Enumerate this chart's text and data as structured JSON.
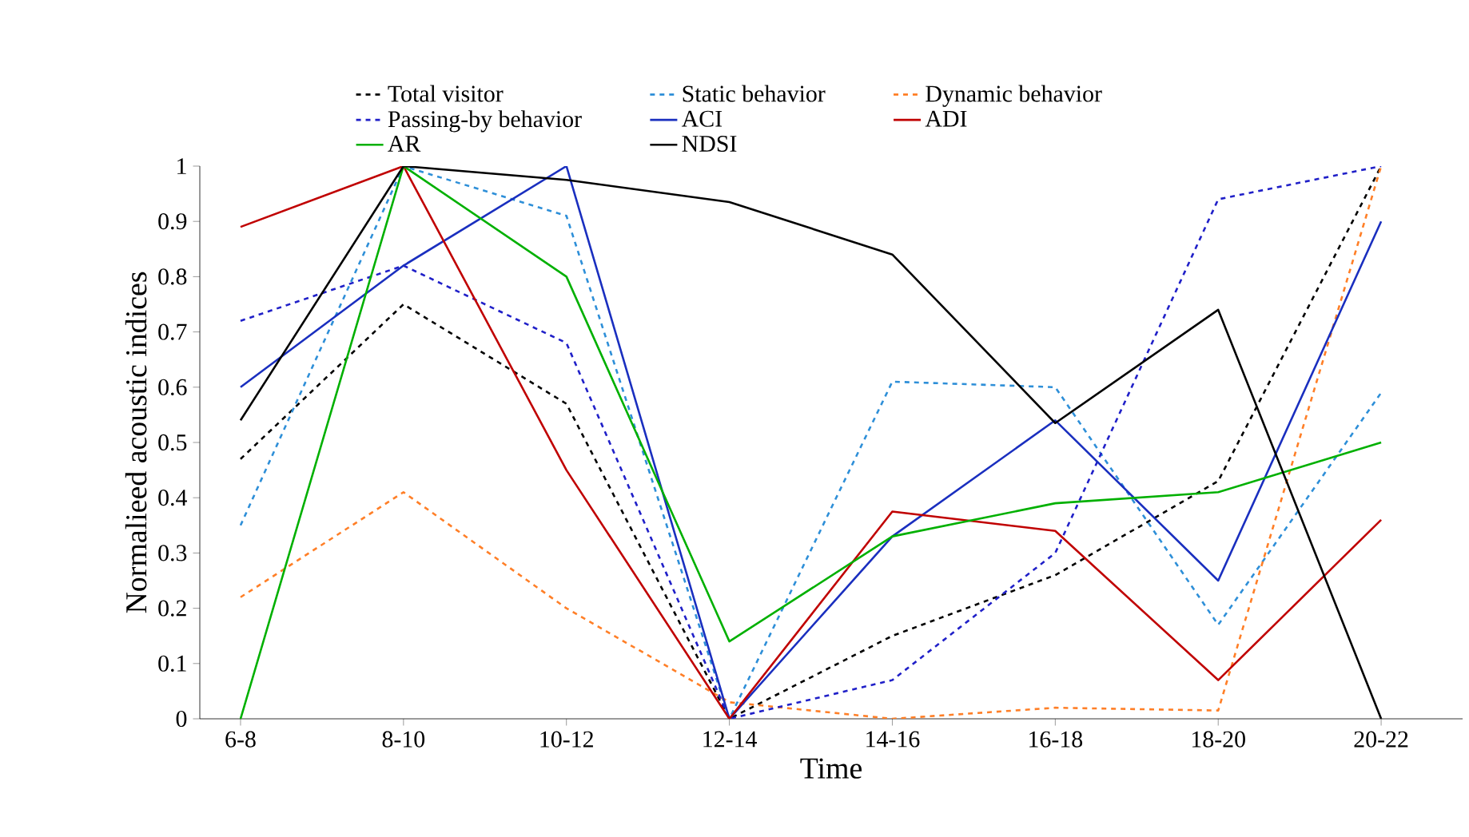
{
  "chart_data": {
    "type": "line",
    "xlabel": "Time",
    "ylabel": "Normalieed  acoustic  indices",
    "categories": [
      "6-8",
      "8-10",
      "10-12",
      "12-14",
      "14-16",
      "16-18",
      "18-20",
      "20-22"
    ],
    "series": [
      {
        "name": "Total visitor",
        "color": "#000000",
        "line_style": "dashed",
        "values": [
          0.47,
          0.75,
          0.57,
          0,
          0.15,
          0.26,
          0.43,
          1.0
        ]
      },
      {
        "name": "Static behavior",
        "color": "#2e8fd8",
        "line_style": "dashed",
        "values": [
          0.35,
          1.0,
          0.91,
          0,
          0.61,
          0.6,
          0.17,
          0.59
        ]
      },
      {
        "name": "Dynamic behavior",
        "color": "#ff7f27",
        "line_style": "dashed",
        "values": [
          0.22,
          0.41,
          0.2,
          0.03,
          0.0,
          0.02,
          0.015,
          1.0
        ]
      },
      {
        "name": "Passing-by behavior",
        "color": "#2020c8",
        "line_style": "dashed",
        "values": [
          0.72,
          0.82,
          0.68,
          0,
          0.07,
          0.3,
          0.94,
          1.0
        ]
      },
      {
        "name": "ACI",
        "color": "#1a2fbf",
        "line_style": "solid",
        "values": [
          0.6,
          0.82,
          1.0,
          0,
          0.33,
          0.54,
          0.25,
          0.9
        ]
      },
      {
        "name": "ADI",
        "color": "#c00000",
        "line_style": "solid",
        "values": [
          0.89,
          1.0,
          0.45,
          0,
          0.375,
          0.34,
          0.07,
          0.36
        ]
      },
      {
        "name": "AR",
        "color": "#00b000",
        "line_style": "solid",
        "values": [
          0,
          1.0,
          0.8,
          0.14,
          0.33,
          0.39,
          0.41,
          0.5
        ]
      },
      {
        "name": "NDSI",
        "color": "#000000",
        "line_style": "solid",
        "values": [
          0.54,
          1.0,
          0.975,
          0.935,
          0.84,
          0.535,
          0.74,
          0
        ]
      }
    ],
    "ylim": [
      0,
      1
    ],
    "yticks": [
      0,
      0.1,
      0.2,
      0.3,
      0.4,
      0.5,
      0.6,
      0.7,
      0.8,
      0.9,
      1
    ],
    "grid": false,
    "legend": "top",
    "marker": "none"
  }
}
